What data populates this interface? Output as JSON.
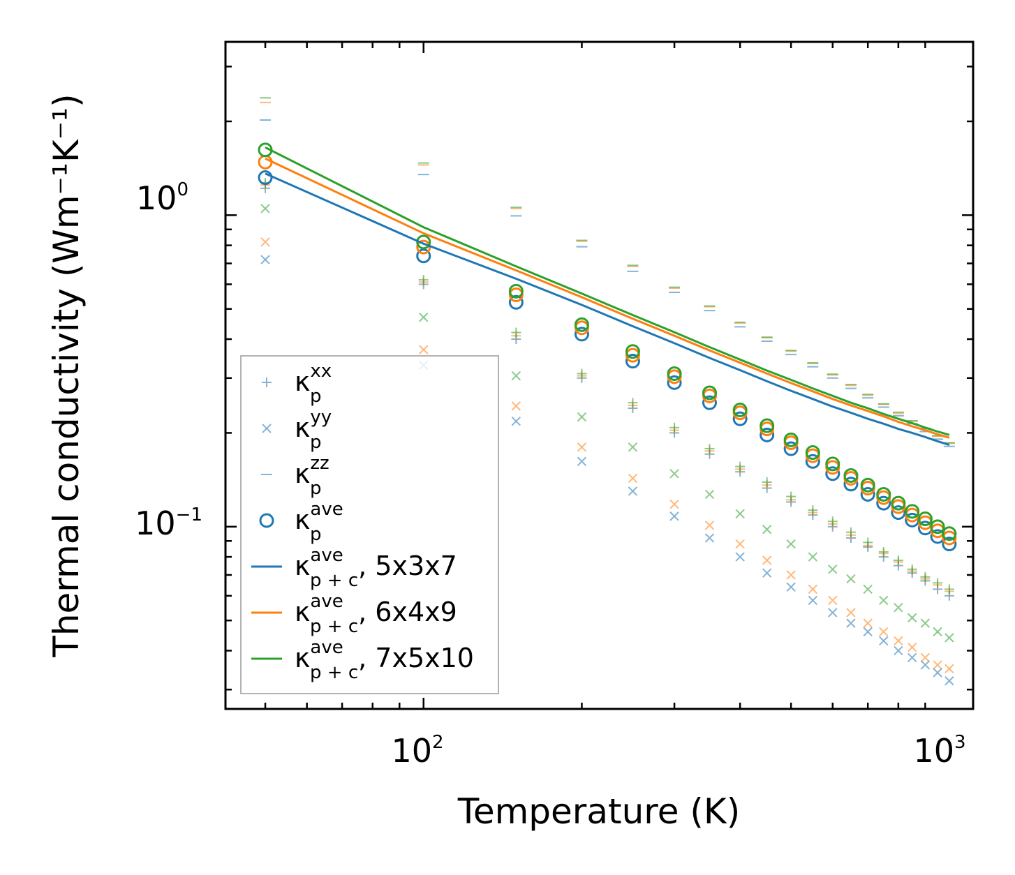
{
  "chart_data": {
    "type": "scatter",
    "xscale": "log",
    "yscale": "log",
    "xlim": [
      42,
      1110
    ],
    "ylim": [
      0.026,
      3.6
    ],
    "xlabel": "Temperature (K)",
    "ylabel": "Thermal conductivity (Wm⁻¹K⁻¹)",
    "x_ticks": [
      {
        "base": "10",
        "exp": "2",
        "value": 100
      },
      {
        "base": "10",
        "exp": "3",
        "value": 1000
      }
    ],
    "y_ticks": [
      {
        "base": "10",
        "exp": "−1",
        "value": 0.1
      },
      {
        "base": "10",
        "exp": "0",
        "value": 1
      }
    ],
    "legend_position": "lower-left",
    "temperatures": [
      50,
      100,
      150,
      200,
      250,
      300,
      350,
      400,
      450,
      500,
      550,
      600,
      650,
      700,
      750,
      800,
      850,
      900,
      950,
      1000
    ],
    "colors": {
      "blue": "#1f77b4",
      "orange": "#ff7f0e",
      "green": "#2ca02c"
    },
    "series": [
      {
        "name": "kxx 5x3x7",
        "component": "xx",
        "color": "blue",
        "values": [
          1.22,
          0.6,
          0.4,
          0.3,
          0.24,
          0.2,
          0.171,
          0.15,
          0.133,
          0.12,
          0.109,
          0.1,
          0.092,
          0.086,
          0.08,
          0.075,
          0.071,
          0.067,
          0.063,
          0.06
        ]
      },
      {
        "name": "kxx 6x4x9",
        "component": "xx",
        "color": "orange",
        "values": [
          1.25,
          0.61,
          0.41,
          0.305,
          0.245,
          0.204,
          0.175,
          0.153,
          0.136,
          0.122,
          0.111,
          0.102,
          0.094,
          0.087,
          0.082,
          0.077,
          0.072,
          0.068,
          0.065,
          0.062
        ]
      },
      {
        "name": "kxx 7x5x10",
        "component": "xx",
        "color": "green",
        "values": [
          1.27,
          0.62,
          0.42,
          0.31,
          0.25,
          0.208,
          0.178,
          0.156,
          0.139,
          0.125,
          0.113,
          0.104,
          0.096,
          0.089,
          0.083,
          0.078,
          0.073,
          0.069,
          0.066,
          0.063
        ]
      },
      {
        "name": "kyy 5x3x7",
        "component": "yy",
        "color": "blue",
        "values": [
          0.72,
          0.33,
          0.218,
          0.162,
          0.13,
          0.108,
          0.092,
          0.08,
          0.071,
          0.064,
          0.058,
          0.053,
          0.049,
          0.046,
          0.043,
          0.04,
          0.038,
          0.036,
          0.034,
          0.032
        ]
      },
      {
        "name": "kyy 6x4x9",
        "component": "yy",
        "color": "orange",
        "values": [
          0.82,
          0.37,
          0.244,
          0.18,
          0.143,
          0.118,
          0.101,
          0.088,
          0.078,
          0.07,
          0.063,
          0.058,
          0.053,
          0.049,
          0.046,
          0.043,
          0.041,
          0.038,
          0.036,
          0.035
        ]
      },
      {
        "name": "kyy 7x5x10",
        "component": "yy",
        "color": "green",
        "values": [
          1.05,
          0.47,
          0.305,
          0.225,
          0.18,
          0.148,
          0.127,
          0.11,
          0.098,
          0.088,
          0.08,
          0.073,
          0.068,
          0.063,
          0.058,
          0.055,
          0.051,
          0.049,
          0.046,
          0.044
        ]
      },
      {
        "name": "kzz 5x3x7",
        "component": "zz",
        "color": "blue",
        "values": [
          2.02,
          1.35,
          0.995,
          0.792,
          0.66,
          0.565,
          0.494,
          0.438,
          0.394,
          0.357,
          0.326,
          0.3,
          0.278,
          0.259,
          0.242,
          0.227,
          0.214,
          0.202,
          0.191,
          0.181
        ]
      },
      {
        "name": "kzz 6x4x9",
        "component": "zz",
        "color": "orange",
        "values": [
          2.3,
          1.45,
          1.05,
          0.825,
          0.685,
          0.583,
          0.508,
          0.45,
          0.404,
          0.366,
          0.334,
          0.307,
          0.284,
          0.264,
          0.247,
          0.231,
          0.218,
          0.206,
          0.195,
          0.185
        ]
      },
      {
        "name": "kzz 7x5x10",
        "component": "zz",
        "color": "green",
        "values": [
          2.38,
          1.47,
          1.06,
          0.83,
          0.69,
          0.587,
          0.511,
          0.453,
          0.406,
          0.368,
          0.336,
          0.309,
          0.286,
          0.266,
          0.248,
          0.233,
          0.219,
          0.207,
          0.196,
          0.186
        ]
      },
      {
        "name": "kave 5x3x7",
        "component": "ave",
        "color": "blue",
        "values": [
          1.32,
          0.74,
          0.525,
          0.415,
          0.34,
          0.29,
          0.25,
          0.222,
          0.197,
          0.178,
          0.162,
          0.148,
          0.137,
          0.127,
          0.119,
          0.111,
          0.105,
          0.099,
          0.093,
          0.088
        ]
      },
      {
        "name": "kave 6x4x9",
        "component": "ave",
        "color": "orange",
        "values": [
          1.48,
          0.79,
          0.555,
          0.435,
          0.355,
          0.303,
          0.263,
          0.232,
          0.206,
          0.186,
          0.169,
          0.155,
          0.143,
          0.133,
          0.124,
          0.116,
          0.109,
          0.103,
          0.097,
          0.092
        ]
      },
      {
        "name": "kave 7x5x10",
        "component": "ave",
        "color": "green",
        "values": [
          1.62,
          0.82,
          0.57,
          0.445,
          0.365,
          0.31,
          0.269,
          0.237,
          0.211,
          0.19,
          0.173,
          0.159,
          0.146,
          0.136,
          0.127,
          0.119,
          0.112,
          0.106,
          0.1,
          0.095
        ]
      },
      {
        "name": "kpc 5x3x7",
        "component": "line",
        "color": "blue",
        "values": [
          1.36,
          0.81,
          0.625,
          0.515,
          0.44,
          0.388,
          0.348,
          0.318,
          0.293,
          0.273,
          0.257,
          0.243,
          0.232,
          0.222,
          0.214,
          0.206,
          0.2,
          0.194,
          0.188,
          0.183
        ]
      },
      {
        "name": "kpc 6x4x9",
        "component": "line",
        "color": "orange",
        "values": [
          1.52,
          0.875,
          0.665,
          0.545,
          0.465,
          0.41,
          0.368,
          0.336,
          0.31,
          0.289,
          0.272,
          0.257,
          0.245,
          0.235,
          0.226,
          0.217,
          0.21,
          0.204,
          0.198,
          0.193
        ]
      },
      {
        "name": "kpc 7x5x10",
        "component": "line",
        "color": "green",
        "values": [
          1.65,
          0.915,
          0.685,
          0.56,
          0.478,
          0.421,
          0.377,
          0.344,
          0.317,
          0.296,
          0.278,
          0.263,
          0.25,
          0.24,
          0.23,
          0.222,
          0.215,
          0.208,
          0.202,
          0.197
        ]
      }
    ],
    "legend": [
      {
        "kind": "plus",
        "color": "blue",
        "base": "κ",
        "sub": "p",
        "sup": "xx",
        "suffix": ""
      },
      {
        "kind": "x",
        "color": "blue",
        "base": "κ",
        "sub": "p",
        "sup": "yy",
        "suffix": ""
      },
      {
        "kind": "dash",
        "color": "blue",
        "base": "κ",
        "sub": "p",
        "sup": "zz",
        "suffix": ""
      },
      {
        "kind": "circle",
        "color": "blue",
        "base": "κ",
        "sub": "p",
        "sup": "ave",
        "suffix": ""
      },
      {
        "kind": "line",
        "color": "blue",
        "base": "κ",
        "sub": "p + c",
        "sup": "ave",
        "suffix": ", 5x3x7"
      },
      {
        "kind": "line",
        "color": "orange",
        "base": "κ",
        "sub": "p + c",
        "sup": "ave",
        "suffix": ", 6x4x9"
      },
      {
        "kind": "line",
        "color": "green",
        "base": "κ",
        "sub": "p + c",
        "sup": "ave",
        "suffix": ", 7x5x10"
      }
    ]
  }
}
